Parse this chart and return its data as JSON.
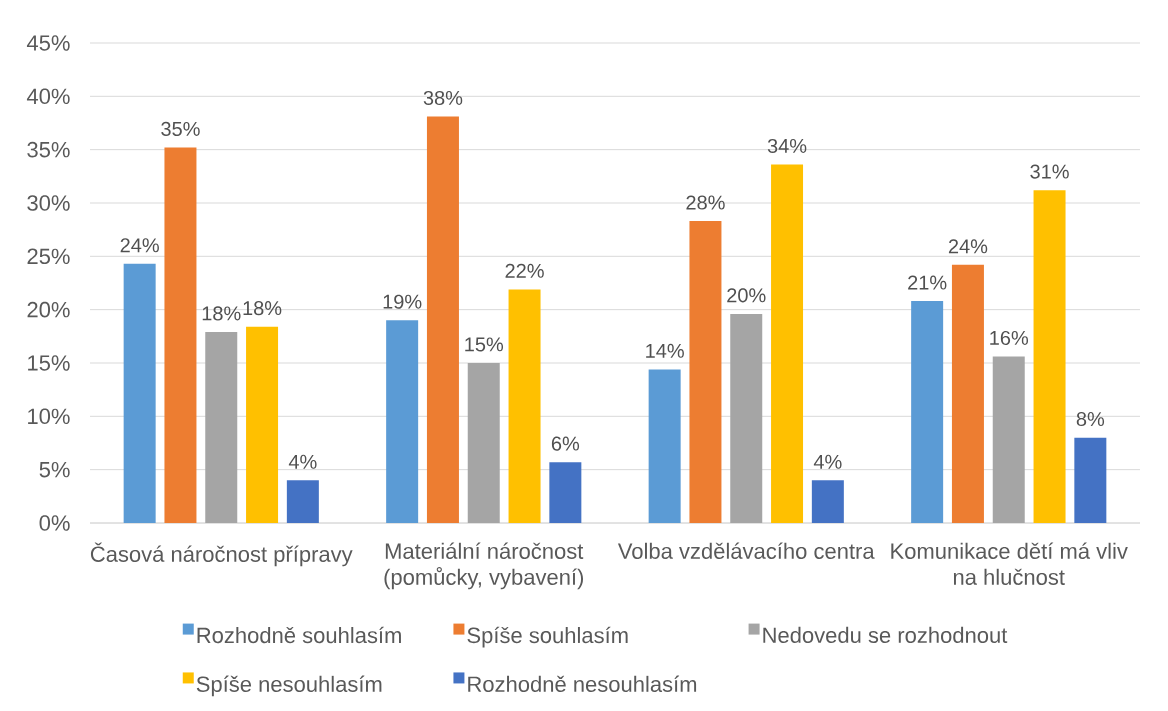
{
  "chart_data": {
    "type": "bar",
    "categories": [
      "Časová náročnost přípravy",
      "Materiální náročnost (pomůcky, vybavení)",
      "Volba vzdělávacího centra",
      "Komunikace dětí má vliv na hlučnost"
    ],
    "series": [
      {
        "name": "Rozhodně souhlasím",
        "color": "#5b9bd5",
        "values": [
          24.3,
          19.0,
          14.4,
          20.8
        ],
        "value_labels": [
          "24%",
          "19%",
          "14%",
          "21%"
        ]
      },
      {
        "name": "Spíše souhlasím",
        "color": "#ed7d31",
        "values": [
          35.2,
          38.1,
          28.3,
          24.2
        ],
        "value_labels": [
          "35%",
          "38%",
          "28%",
          "24%"
        ]
      },
      {
        "name": "Nedovedu se rozhodnout",
        "color": "#a5a5a5",
        "values": [
          17.9,
          15.0,
          19.6,
          15.6
        ],
        "value_labels": [
          "18%",
          "15%",
          "20%",
          "16%"
        ]
      },
      {
        "name": "Spíše nesouhlasím",
        "color": "#ffc000",
        "values": [
          18.4,
          21.9,
          33.6,
          31.2
        ],
        "value_labels": [
          "18%",
          "22%",
          "34%",
          "31%"
        ]
      },
      {
        "name": "Rozhodně nesouhlasím",
        "color": "#4472c4",
        "values": [
          4.0,
          5.7,
          4.0,
          8.0
        ],
        "value_labels": [
          "4%",
          "6%",
          "4%",
          "8%"
        ]
      }
    ],
    "ylim": [
      0,
      45
    ],
    "yticks": [
      {
        "value": 0,
        "label": "0%"
      },
      {
        "value": 5,
        "label": "5%"
      },
      {
        "value": 10,
        "label": "10%"
      },
      {
        "value": 15,
        "label": "15%"
      },
      {
        "value": 20,
        "label": "20%"
      },
      {
        "value": 25,
        "label": "25%"
      },
      {
        "value": 30,
        "label": "30%"
      },
      {
        "value": 35,
        "label": "35%"
      },
      {
        "value": 40,
        "label": "40%"
      },
      {
        "value": 45,
        "label": "45%"
      }
    ],
    "grid": "y",
    "legend": "bottom"
  }
}
